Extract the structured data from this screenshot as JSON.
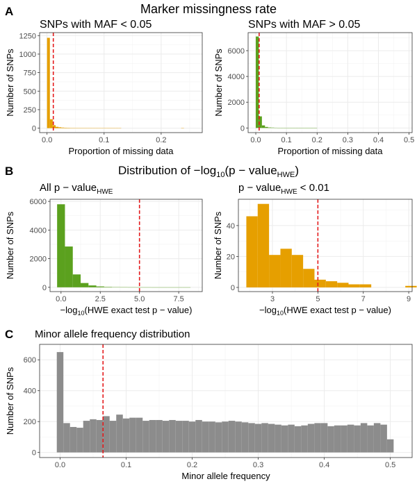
{
  "panels": {
    "A": {
      "letter": "A",
      "title": "Marker missingness rate"
    },
    "B": {
      "letter": "B",
      "title_prefix": "Distribution of −log",
      "title_sub": "10",
      "title_mid": "(p − value",
      "title_sub2": "HWE",
      "title_suffix": ")"
    },
    "C": {
      "letter": "C"
    }
  },
  "colors": {
    "orange": "#E69F00",
    "green": "#5BA11E",
    "grey": "#8C8C8C",
    "vline": "#E41A1C",
    "grid": "#EBEBEB",
    "border": "#333333"
  },
  "chart_data": [
    {
      "id": "a1",
      "type": "bar",
      "title": "SNPs with MAF < 0.05",
      "xlabel": "Proportion of missing data",
      "ylabel": "Number of SNPs",
      "xlim": [
        -0.013,
        0.272
      ],
      "ylim": [
        -60,
        1290
      ],
      "xticks": [
        0.0,
        0.1,
        0.2
      ],
      "xtick_labels": [
        "0.0",
        "0.1",
        "0.2"
      ],
      "yticks": [
        0,
        250,
        500,
        750,
        1000,
        1250
      ],
      "ytick_labels": [
        "0",
        "250",
        "500",
        "750",
        "1000",
        "1250"
      ],
      "bin_start": 0.0,
      "bin_width": 0.005,
      "values": [
        1220,
        120,
        40,
        18,
        12,
        8,
        6,
        5,
        4,
        4,
        3,
        3,
        2,
        2,
        2,
        2,
        1,
        1,
        1,
        1,
        1,
        1,
        1,
        1,
        1,
        1,
        0,
        0,
        0,
        0,
        0,
        0,
        0,
        0,
        0,
        0,
        0,
        0,
        0,
        0,
        0,
        0,
        0,
        0,
        0,
        0,
        0,
        1
      ],
      "fill": "#E69F00",
      "vline": 0.011
    },
    {
      "id": "a2",
      "type": "bar",
      "title": "SNPs with MAF > 0.05",
      "xlabel": "Proportion of missing data",
      "ylabel": "Number of SNPs",
      "xlim": [
        -0.025,
        0.51
      ],
      "ylim": [
        -360,
        7400
      ],
      "xticks": [
        0.0,
        0.1,
        0.2,
        0.3,
        0.4,
        0.5
      ],
      "xtick_labels": [
        "0.0",
        "0.1",
        "0.2",
        "0.3",
        "0.4",
        "0.5"
      ],
      "yticks": [
        0,
        2000,
        4000,
        6000
      ],
      "ytick_labels": [
        "0",
        "2000",
        "4000",
        "6000"
      ],
      "bin_start": 0.0,
      "bin_width": 0.01,
      "values": [
        7100,
        900,
        200,
        80,
        40,
        30,
        20,
        15,
        10,
        8,
        6,
        5,
        4,
        3,
        3,
        2,
        2,
        2,
        1,
        1
      ],
      "fill": "#5BA11E",
      "vline": 0.011
    },
    {
      "id": "b1",
      "type": "bar",
      "title_prefix": "All p − value",
      "title_sub": "HWE",
      "xlabel_prefix": "−log",
      "xlabel_sub": "10",
      "xlabel_suffix": "(HWE exact test p − value)",
      "ylabel": "Number of SNPs",
      "xlim": [
        -0.7,
        9.0
      ],
      "ylim": [
        -300,
        6150
      ],
      "xticks": [
        0.0,
        2.5,
        5.0,
        7.5
      ],
      "xtick_labels": [
        "0.0",
        "2.5",
        "5.0",
        "7.5"
      ],
      "yticks": [
        0,
        2000,
        4000,
        6000
      ],
      "ytick_labels": [
        "0",
        "2000",
        "4000",
        "6000"
      ],
      "bin_start": -0.25,
      "bin_width": 0.5,
      "values": [
        5800,
        2850,
        900,
        300,
        130,
        60,
        30,
        15,
        8,
        5,
        3,
        2,
        1,
        1,
        1,
        1,
        1
      ],
      "fill": "#5BA11E",
      "vline": 5.0
    },
    {
      "id": "b2",
      "type": "bar",
      "title_prefix": "p − value",
      "title_sub": "HWE",
      "title_suffix": " < 0.01",
      "xlabel_prefix": "−log",
      "xlabel_sub": "10",
      "xlabel_suffix": "(HWE exact test p − value)",
      "ylabel": "Number of SNPs",
      "xlim": [
        1.5,
        9.15
      ],
      "ylim": [
        -2.7,
        57
      ],
      "xticks": [
        3,
        5,
        7,
        9
      ],
      "xtick_labels": [
        "3",
        "5",
        "7",
        "9"
      ],
      "yticks": [
        0,
        20,
        40
      ],
      "ytick_labels": [
        "0",
        "20",
        "40"
      ],
      "bin_start": 1.85,
      "bin_width": 0.5,
      "values": [
        46,
        54,
        21,
        25,
        21,
        12,
        5,
        4,
        3,
        2,
        2,
        0,
        0,
        0,
        1
      ],
      "fill": "#E69F00",
      "vline": 5.0
    },
    {
      "id": "c",
      "type": "bar",
      "title": "Minor allele frequency distribution",
      "xlabel": "Minor allele frequency",
      "ylabel": "Number of SNPs",
      "xlim": [
        -0.031,
        0.533
      ],
      "ylim": [
        -33,
        700
      ],
      "xticks": [
        0.0,
        0.1,
        0.2,
        0.3,
        0.4,
        0.5
      ],
      "xtick_labels": [
        "0.0",
        "0.1",
        "0.2",
        "0.3",
        "0.4",
        "0.5"
      ],
      "yticks": [
        0,
        200,
        400,
        600
      ],
      "ytick_labels": [
        "0",
        "200",
        "400",
        "600"
      ],
      "bin_start": -0.005,
      "bin_width": 0.01,
      "values": [
        650,
        190,
        165,
        160,
        205,
        215,
        210,
        235,
        205,
        245,
        220,
        225,
        225,
        205,
        210,
        210,
        205,
        210,
        205,
        205,
        200,
        210,
        200,
        200,
        195,
        200,
        205,
        200,
        195,
        190,
        185,
        190,
        185,
        180,
        175,
        180,
        170,
        175,
        185,
        190,
        190,
        170,
        175,
        175,
        180,
        175,
        190,
        175,
        190,
        180,
        85
      ],
      "fill": "#8C8C8C",
      "vline": 0.065
    }
  ]
}
